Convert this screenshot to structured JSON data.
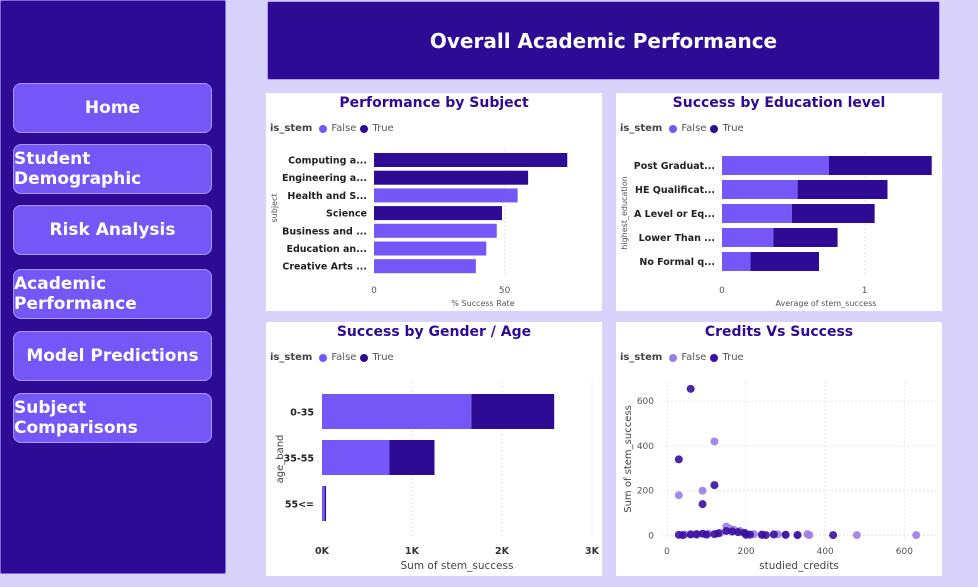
{
  "nav": {
    "home": "Home",
    "student_demographic": "Student Demographic",
    "risk_analysis": "Risk Analysis",
    "academic_performance": "Academic Performance",
    "model_predictions": "Model Predictions",
    "subject_comparisons": "Subject Comparisons"
  },
  "page_title": "Overall Academic Performance",
  "legend": {
    "field": "is_stem",
    "false_label": "False",
    "true_label": "True"
  },
  "colors": {
    "false": "#7556f7",
    "true": "#2e0b94",
    "title": "#2e0b94"
  },
  "panels": {
    "subject": {
      "title": "Performance by Subject"
    },
    "education": {
      "title": "Success by Education level"
    },
    "gender_age": {
      "title": "Success by Gender / Age"
    },
    "credits": {
      "title": "Credits Vs Success"
    }
  },
  "chart_data": [
    {
      "type": "bar",
      "orientation": "horizontal",
      "title": "Performance by Subject",
      "xlabel": "% Success Rate",
      "ylabel": "subject",
      "xticks": [
        "0",
        "50"
      ],
      "xlim": [
        0,
        85
      ],
      "categories": [
        "Computing a...",
        "Engineering a...",
        "Health and S...",
        "Science",
        "Business and ...",
        "Education an...",
        "Creative Arts ..."
      ],
      "values": [
        74,
        59,
        55,
        49,
        47,
        43,
        39
      ],
      "is_stem": [
        true,
        true,
        false,
        true,
        false,
        false,
        false
      ]
    },
    {
      "type": "bar",
      "orientation": "horizontal",
      "stacked": true,
      "title": "Success by Education level",
      "xlabel": "Average of stem_success",
      "ylabel": "highest_education",
      "xticks": [
        "0",
        "1"
      ],
      "xlim": [
        0,
        1.5
      ],
      "categories": [
        "Post Graduat...",
        "HE Qualificat...",
        "A Level or Eq...",
        "Lower Than ...",
        "No Formal q..."
      ],
      "series": [
        {
          "name": "False",
          "values": [
            0.75,
            0.53,
            0.49,
            0.36,
            0.2
          ]
        },
        {
          "name": "True",
          "values": [
            0.72,
            0.63,
            0.58,
            0.45,
            0.48
          ]
        }
      ]
    },
    {
      "type": "bar",
      "orientation": "horizontal",
      "stacked": true,
      "title": "Success by Gender / Age",
      "xlabel": "Sum of stem_success",
      "ylabel": "age_band",
      "xticks": [
        "0K",
        "1K",
        "2K",
        "3K"
      ],
      "xlim": [
        0,
        3000
      ],
      "categories": [
        "0-35",
        "35-55",
        "55<="
      ],
      "series": [
        {
          "name": "False",
          "values": [
            1660,
            750,
            30
          ]
        },
        {
          "name": "True",
          "values": [
            920,
            500,
            15
          ]
        }
      ]
    },
    {
      "type": "scatter",
      "title": "Credits Vs Success",
      "xlabel": "studied_credits",
      "ylabel": "Sum of stem_success",
      "xticks": [
        "0",
        "200",
        "400",
        "600"
      ],
      "yticks": [
        "0",
        "200",
        "400",
        "600"
      ],
      "xlim": [
        -10,
        680
      ],
      "ylim": [
        -20,
        690
      ],
      "series": [
        {
          "name": "False",
          "points": [
            [
              30,
              180
            ],
            [
              90,
              200
            ],
            [
              120,
              420
            ],
            [
              150,
              40
            ],
            [
              170,
              25
            ],
            [
              200,
              10
            ],
            [
              240,
              5
            ],
            [
              280,
              5
            ],
            [
              330,
              3
            ],
            [
              360,
              2
            ],
            [
              480,
              2
            ],
            [
              630,
              2
            ],
            [
              60,
              5
            ],
            [
              75,
              3
            ],
            [
              105,
              8
            ],
            [
              135,
              12
            ],
            [
              185,
              20
            ],
            [
              220,
              6
            ],
            [
              300,
              4
            ],
            [
              355,
              6
            ],
            [
              45,
              4
            ],
            [
              160,
              30
            ]
          ]
        },
        {
          "name": "True",
          "points": [
            [
              60,
              655
            ],
            [
              30,
              340
            ],
            [
              120,
              225
            ],
            [
              90,
              140
            ],
            [
              60,
              5
            ],
            [
              30,
              3
            ],
            [
              90,
              8
            ],
            [
              120,
              6
            ],
            [
              150,
              20
            ],
            [
              180,
              15
            ],
            [
              210,
              4
            ],
            [
              240,
              3
            ],
            [
              270,
              5
            ],
            [
              300,
              3
            ],
            [
              330,
              2
            ],
            [
              420,
              2
            ],
            [
              100,
              4
            ],
            [
              130,
              10
            ],
            [
              165,
              18
            ],
            [
              195,
              12
            ],
            [
              250,
              2
            ],
            [
              75,
              6
            ],
            [
              200,
              3
            ],
            [
              40,
              2
            ]
          ]
        }
      ]
    }
  ]
}
